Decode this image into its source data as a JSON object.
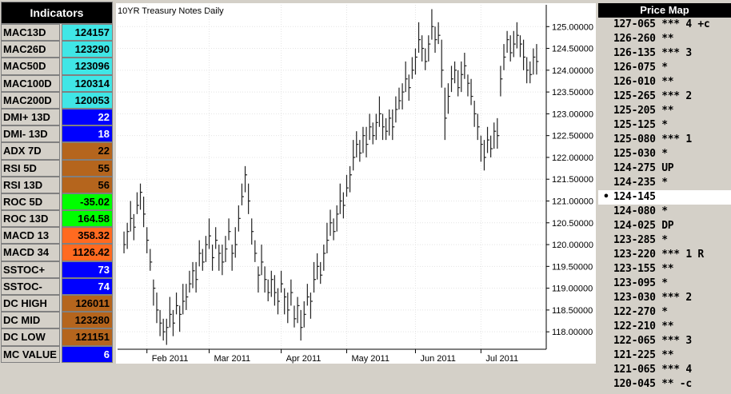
{
  "indicators": {
    "title": "Indicators",
    "rows": [
      {
        "label": "MAC13D",
        "value": 124157,
        "color": "#40e6e6"
      },
      {
        "label": "MAC26D",
        "value": 123290,
        "color": "#40e6e6"
      },
      {
        "label": "MAC50D",
        "value": 123096,
        "color": "#40e6e6"
      },
      {
        "label": "MAC100D",
        "value": 120314,
        "color": "#40e6e6"
      },
      {
        "label": "MAC200D",
        "value": 120053,
        "color": "#40e6e6"
      },
      {
        "label": "DMI+ 13D",
        "value": 22,
        "color": "#0000ff"
      },
      {
        "label": "DMI- 13D",
        "value": 18,
        "color": "#0000ff"
      },
      {
        "label": "ADX 7D",
        "value": 22,
        "color": "#b5651d"
      },
      {
        "label": "RSI 5D",
        "value": 55,
        "color": "#b5651d"
      },
      {
        "label": "RSI 13D",
        "value": 56,
        "color": "#b5651d"
      },
      {
        "label": "ROC 5D",
        "value": -35.02,
        "color": "#00ff00"
      },
      {
        "label": "ROC 13D",
        "value": 164.58,
        "color": "#00ff00"
      },
      {
        "label": "MACD 13",
        "value": 358.32,
        "color": "#ff6a20"
      },
      {
        "label": "MACD 34",
        "value": 1126.42,
        "color": "#ff6a20"
      },
      {
        "label": "SSTOC+",
        "value": 73,
        "color": "#0000ff"
      },
      {
        "label": "SSTOC-",
        "value": 74,
        "color": "#0000ff"
      },
      {
        "label": "DC HIGH",
        "value": 126011,
        "color": "#b5651d"
      },
      {
        "label": "DC MID",
        "value": 123280,
        "color": "#b5651d"
      },
      {
        "label": "DC LOW",
        "value": 121151,
        "color": "#b5651d"
      },
      {
        "label": "MC VALUE",
        "value": 6,
        "color": "#0000ff"
      }
    ]
  },
  "price_map": {
    "title": "Price Map",
    "selected_index": 12,
    "items": [
      "127-065 *** 4 +c",
      "126-260 **",
      "126-135 *** 3",
      "126-075 *",
      "126-010 **",
      "125-265 *** 2",
      "125-205 **",
      "125-125 *",
      "125-080 *** 1",
      "125-030 *",
      "124-275 UP",
      "124-235 *",
      "124-145",
      "124-080 *",
      "124-025 DP",
      "123-285 *",
      "123-220 *** 1 R",
      "123-155 **",
      "123-095 *",
      "123-030 *** 2",
      "122-270 *",
      "122-210 **",
      "122-065 *** 3",
      "121-225 **",
      "121-065 *** 4",
      "120-045 ** -c"
    ]
  },
  "chart_data": {
    "type": "ohlc",
    "title": "10YR Treasury Notes Daily",
    "color": "#222222",
    "grid": true,
    "ylim": [
      117.6,
      125.5
    ],
    "yticks": [
      {
        "value": 118.0,
        "label": "118.00000"
      },
      {
        "value": 118.5,
        "label": "118.50000"
      },
      {
        "value": 119.0,
        "label": "119.00000"
      },
      {
        "value": 119.5,
        "label": "119.50000"
      },
      {
        "value": 120.0,
        "label": "120.00000"
      },
      {
        "value": 120.5,
        "label": "120.50000"
      },
      {
        "value": 121.0,
        "label": "121.00000"
      },
      {
        "value": 121.5,
        "label": "121.50000"
      },
      {
        "value": 122.0,
        "label": "122.00000"
      },
      {
        "value": 122.5,
        "label": "122.50000"
      },
      {
        "value": 123.0,
        "label": "123.00000"
      },
      {
        "value": 123.5,
        "label": "123.50000"
      },
      {
        "value": 124.0,
        "label": "124.00000"
      },
      {
        "value": 124.5,
        "label": "124.50000"
      },
      {
        "value": 125.0,
        "label": "125.00000"
      }
    ],
    "categories": [
      null,
      null,
      null,
      null,
      null,
      null,
      null,
      "Feb 2011",
      null,
      null,
      null,
      null,
      null,
      null,
      null,
      null,
      null,
      null,
      null,
      null,
      null,
      null,
      null,
      null,
      null,
      null,
      "Mar 2011",
      null,
      null,
      null,
      null,
      null,
      null,
      null,
      null,
      null,
      null,
      null,
      null,
      null,
      null,
      null,
      null,
      null,
      null,
      null,
      null,
      null,
      "Apr 2011",
      null,
      null,
      null,
      null,
      null,
      null,
      null,
      null,
      null,
      null,
      null,
      null,
      null,
      null,
      null,
      null,
      null,
      null,
      null,
      "May 2011",
      null,
      null,
      null,
      null,
      null,
      null,
      null,
      null,
      null,
      null,
      null,
      null,
      null,
      null,
      null,
      null,
      null,
      null,
      null,
      null,
      "Jun 2011",
      null,
      null,
      null,
      null,
      null,
      null,
      null,
      null,
      null,
      null,
      null,
      null,
      null,
      null,
      null,
      null,
      null,
      null,
      null,
      "Jul 2011",
      null,
      null,
      null,
      null,
      null,
      null,
      null,
      null,
      null,
      null,
      null,
      null,
      null,
      null,
      null,
      null,
      null
    ],
    "high": [
      120.3,
      120.5,
      121.0,
      120.7,
      121.2,
      121.4,
      121.1,
      120.4,
      119.9,
      119.2,
      118.9,
      118.5,
      118.3,
      118.3,
      118.8,
      118.5,
      118.9,
      118.6,
      119.1,
      119.1,
      119.4,
      119.6,
      119.6,
      120.1,
      119.9,
      120.2,
      120.6,
      120.0,
      120.4,
      120.0,
      120.0,
      120.2,
      120.6,
      120.0,
      120.4,
      120.9,
      121.4,
      121.8,
      121.4,
      120.6,
      120.1,
      119.5,
      120.0,
      119.5,
      119.2,
      119.4,
      119.3,
      119.0,
      119.4,
      119.0,
      118.9,
      119.2,
      118.6,
      118.8,
      118.5,
      118.7,
      119.1,
      118.9,
      119.6,
      119.8,
      119.6,
      120.0,
      120.5,
      120.8,
      120.6,
      120.9,
      121.4,
      121.2,
      121.6,
      121.8,
      122.4,
      122.6,
      122.4,
      122.7,
      122.7,
      123.0,
      122.8,
      123.0,
      123.4,
      123.0,
      122.9,
      123.1,
      123.1,
      123.4,
      123.6,
      123.7,
      124.2,
      123.9,
      124.3,
      124.5,
      125.1,
      124.8,
      124.5,
      124.8,
      125.4,
      125.0,
      125.1,
      124.7,
      123.6,
      123.7,
      124.1,
      124.2,
      124.0,
      124.2,
      124.4,
      123.9,
      123.8,
      123.3,
      123.0,
      122.5,
      122.4,
      122.7,
      122.5,
      122.8,
      122.9,
      124.1,
      124.6,
      124.9,
      124.8,
      124.9,
      125.1,
      124.8,
      124.7,
      124.3,
      124.2,
      124.5,
      124.6
    ],
    "low": [
      119.8,
      119.9,
      120.3,
      120.1,
      120.7,
      120.8,
      120.4,
      119.8,
      119.4,
      118.6,
      118.2,
      117.9,
      117.8,
      117.7,
      118.1,
      117.9,
      118.4,
      118.0,
      118.4,
      118.5,
      118.9,
      119.0,
      118.9,
      119.5,
      119.4,
      119.6,
      119.9,
      119.4,
      119.9,
      119.4,
      119.3,
      119.6,
      120.1,
      119.4,
      119.7,
      120.3,
      120.9,
      121.2,
      120.7,
      120.0,
      119.6,
      118.9,
      119.3,
      118.9,
      118.7,
      118.8,
      118.6,
      118.4,
      118.9,
      118.4,
      118.2,
      118.6,
      118.1,
      118.2,
      117.8,
      118.1,
      118.6,
      118.3,
      118.9,
      119.2,
      119.1,
      119.4,
      119.8,
      120.2,
      120.1,
      120.3,
      120.7,
      120.6,
      121.1,
      121.2,
      121.7,
      122.0,
      121.9,
      122.1,
      122.0,
      122.4,
      122.3,
      122.4,
      122.7,
      122.4,
      122.4,
      122.5,
      122.4,
      122.8,
      123.1,
      123.1,
      123.5,
      123.3,
      123.8,
      123.9,
      124.4,
      124.2,
      124.0,
      124.2,
      124.7,
      124.4,
      124.6,
      123.6,
      122.4,
      123.0,
      123.5,
      123.7,
      123.4,
      123.5,
      123.8,
      123.4,
      123.2,
      122.7,
      122.4,
      121.9,
      121.7,
      122.1,
      122.0,
      122.2,
      122.2,
      123.4,
      124.0,
      124.4,
      124.2,
      124.3,
      124.5,
      124.3,
      124.0,
      123.7,
      123.7,
      123.9,
      123.9
    ],
    "close": [
      120.0,
      120.3,
      120.6,
      120.4,
      120.9,
      121.2,
      120.7,
      120.1,
      119.6,
      119.0,
      118.5,
      118.2,
      118.0,
      118.1,
      118.4,
      118.2,
      118.6,
      118.4,
      118.7,
      118.8,
      119.1,
      119.4,
      119.2,
      119.8,
      119.6,
      120.0,
      120.2,
      119.7,
      120.1,
      119.8,
      119.6,
      119.9,
      120.3,
      119.8,
      120.0,
      120.6,
      121.1,
      121.6,
      121.0,
      120.3,
      119.8,
      119.3,
      119.6,
      119.2,
      118.9,
      119.2,
      118.9,
      118.7,
      119.1,
      118.8,
      118.5,
      118.9,
      118.3,
      118.6,
      118.1,
      118.4,
      118.8,
      118.7,
      119.2,
      119.5,
      119.3,
      119.8,
      120.1,
      120.5,
      120.3,
      120.7,
      121.0,
      120.9,
      121.3,
      121.6,
      122.0,
      122.3,
      122.1,
      122.5,
      122.3,
      122.7,
      122.5,
      122.8,
      123.0,
      122.7,
      122.6,
      122.9,
      122.7,
      123.1,
      123.3,
      123.5,
      123.8,
      123.6,
      124.0,
      124.3,
      124.7,
      124.5,
      124.2,
      124.6,
      125.0,
      124.7,
      124.8,
      124.0,
      122.9,
      123.4,
      123.8,
      124.0,
      123.6,
      123.9,
      124.1,
      123.7,
      123.4,
      123.0,
      122.7,
      122.3,
      122.0,
      122.4,
      122.2,
      122.6,
      122.5,
      123.8,
      124.3,
      124.7,
      124.4,
      124.6,
      124.8,
      124.6,
      124.3,
      124.0,
      123.9,
      124.3,
      124.2
    ]
  }
}
